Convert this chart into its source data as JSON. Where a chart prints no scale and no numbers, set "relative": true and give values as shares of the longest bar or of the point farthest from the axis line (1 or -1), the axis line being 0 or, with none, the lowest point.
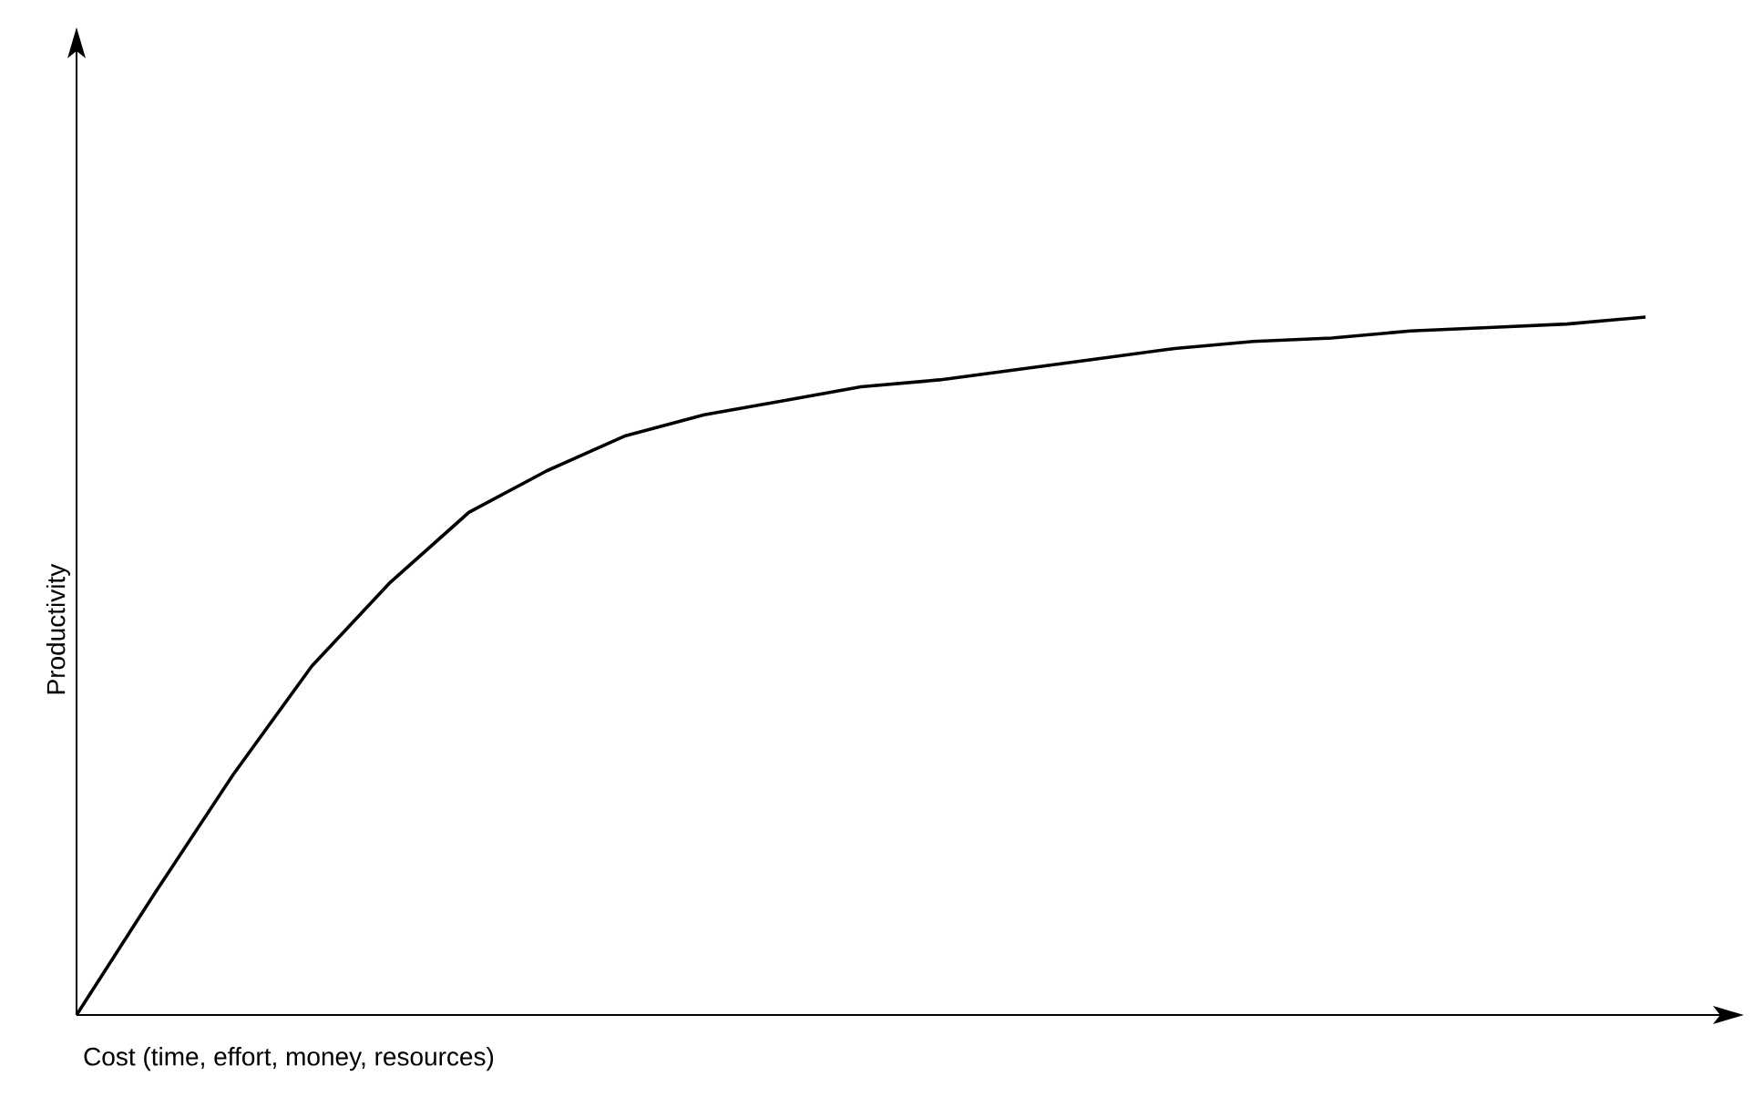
{
  "chart_data": {
    "type": "line",
    "relative": true,
    "xlabel": "Cost (time, effort, money, resources)",
    "ylabel": "Productivity",
    "color": "#000000",
    "categories": [
      null,
      null,
      null,
      null,
      null,
      null,
      null,
      null,
      null,
      null,
      null,
      null,
      null,
      null,
      null,
      null,
      null,
      null,
      null,
      null,
      null
    ],
    "values": [
      0,
      0.175,
      0.345,
      0.5,
      0.62,
      0.72,
      0.78,
      0.83,
      0.86,
      0.88,
      0.9,
      0.91,
      0.925,
      0.94,
      0.955,
      0.965,
      0.97,
      0.98,
      0.985,
      0.99,
      1.0
    ]
  }
}
